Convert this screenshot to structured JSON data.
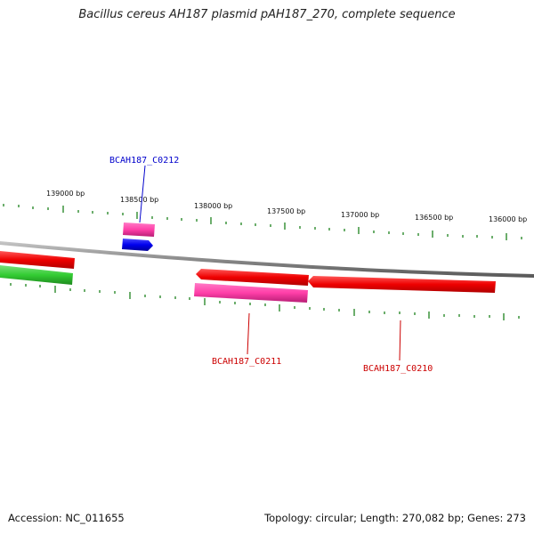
{
  "title": "Bacillus cereus AH187 plasmid pAH187_270, complete sequence",
  "footer": {
    "accession": "Accession: NC_011655",
    "summary": "Topology: circular; Length: 270,082 bp; Genes: 273"
  },
  "ruler": {
    "labels": [
      "139000 bp",
      "138500 bp",
      "138000 bp",
      "137500 bp",
      "137000 bp",
      "136500 bp",
      "136000 bp"
    ]
  },
  "genes": [
    {
      "label": "BCAH187_C0212",
      "color": "#0000cc"
    },
    {
      "label": "BCAH187_C0211",
      "color": "#cc0000"
    },
    {
      "label": "BCAH187_C0210",
      "color": "#cc0000"
    }
  ],
  "colors": {
    "backbone": "#8a8a8a",
    "forward_cds": "#ff0000",
    "reverse_cds": "#ff0000",
    "pink_feature": "#ff3fa8",
    "blue_feature": "#0000ff",
    "green_feature": "#33cc33",
    "tick": "#2e8b2e"
  }
}
